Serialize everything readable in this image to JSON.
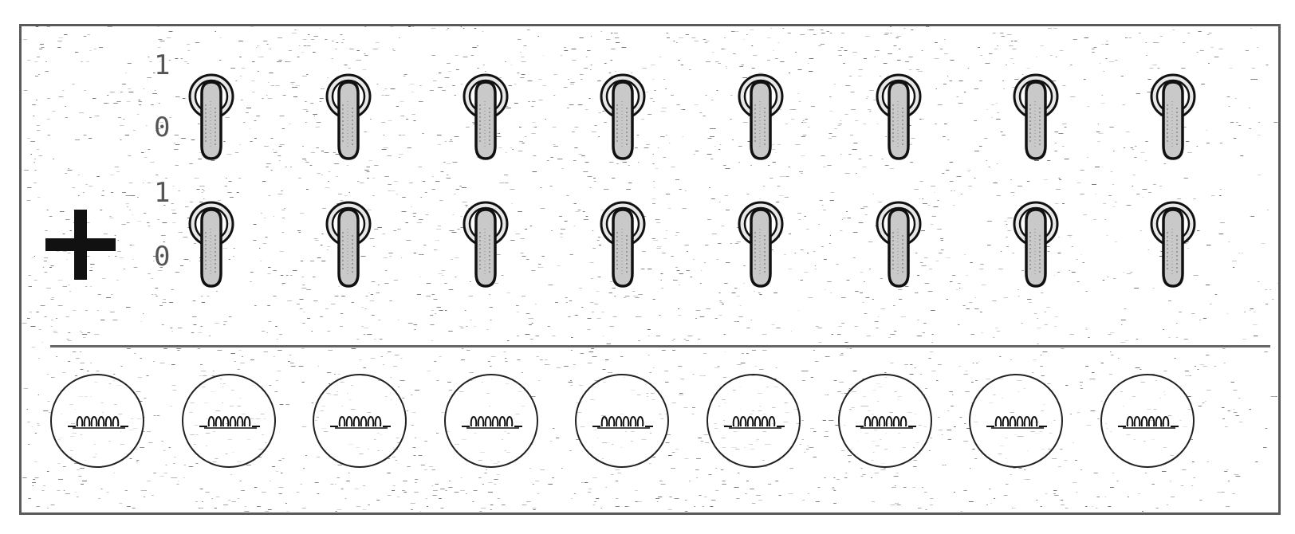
{
  "panel": {
    "rows": [
      {
        "on_label": "1",
        "off_label": "0",
        "switch_count": 8
      },
      {
        "on_label": "1",
        "off_label": "0",
        "switch_count": 8
      }
    ],
    "add_icon": "plus-icon",
    "toggle_icon": "toggle-switch-icon",
    "coil_icon": "coil-icon",
    "coil_button_count": 9
  },
  "colors": {
    "background": "#ffffff",
    "border": "#5a5a5a",
    "ink": "#111111",
    "label": "#555555"
  }
}
